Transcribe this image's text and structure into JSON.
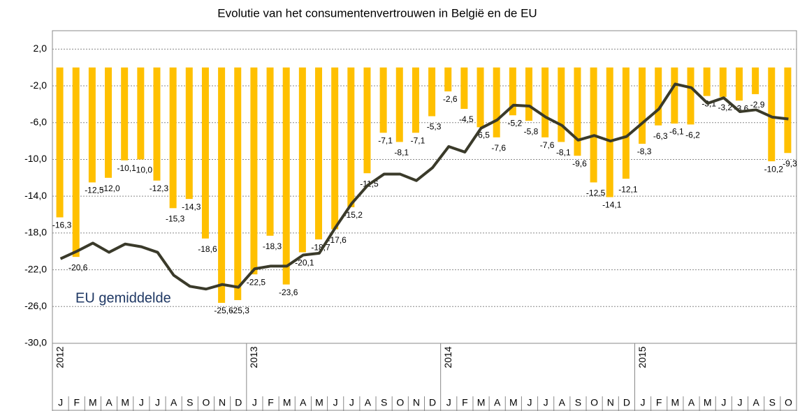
{
  "chart_data": {
    "type": "combo",
    "title": "Evolutie van het consumentenvertrouwen in België en de EU",
    "categories": [
      "J",
      "F",
      "M",
      "A",
      "M",
      "J",
      "J",
      "A",
      "S",
      "O",
      "N",
      "D",
      "J",
      "F",
      "M",
      "A",
      "M",
      "J",
      "J",
      "A",
      "S",
      "O",
      "N",
      "D",
      "J",
      "F",
      "M",
      "A",
      "M",
      "J",
      "J",
      "A",
      "S",
      "O",
      "N",
      "D",
      "J",
      "F",
      "M",
      "A",
      "M",
      "J",
      "J",
      "A",
      "S",
      "O"
    ],
    "years": [
      "2012",
      "2013",
      "2014",
      "2015"
    ],
    "ylim": [
      -30,
      4
    ],
    "yticks": [
      {
        "value": 2,
        "label": "2,0"
      },
      {
        "value": -2,
        "label": "-2,0"
      },
      {
        "value": -6,
        "label": "-6,0"
      },
      {
        "value": -10,
        "label": "-10,0"
      },
      {
        "value": -14,
        "label": "-14,0"
      },
      {
        "value": -18,
        "label": "-18,0"
      },
      {
        "value": -22,
        "label": "-22,0"
      },
      {
        "value": -26,
        "label": "-26,0"
      },
      {
        "value": -30,
        "label": "-30,0"
      }
    ],
    "grid": true,
    "series": [
      {
        "type": "bar",
        "color": "#ffc000",
        "values": [
          -16.3,
          -20.6,
          -12.5,
          -12.0,
          -10.1,
          -10.0,
          -12.3,
          -15.3,
          -14.3,
          -18.6,
          -25.6,
          -25.3,
          -22.5,
          -18.3,
          -23.6,
          -20.1,
          -18.7,
          -17.6,
          -15.2,
          -11.5,
          -7.1,
          -8.1,
          -7.1,
          -5.3,
          -2.6,
          -4.5,
          -6.5,
          -7.6,
          -5.2,
          -5.8,
          -7.6,
          -8.1,
          -9.6,
          -12.5,
          -14.1,
          -12.1,
          -8.3,
          -6.3,
          -6.1,
          -6.2,
          -3.1,
          -3.2,
          -3.6,
          -2.9,
          -10.2,
          -9.3
        ],
        "value_labels": [
          "-16,3",
          "-20,6",
          "-12,5",
          "-12,0",
          "-10,1",
          "-10,0",
          "-12,3",
          "-15,3",
          "-14,3",
          "-18,6",
          "-25,6",
          "-25,3",
          "-22,5",
          "-18,3",
          "-23,6",
          "-20,1",
          "-18,7",
          "-17,6",
          "-15,2",
          "-11,5",
          "-7,1",
          "-8,1",
          "-7,1",
          "-5,3",
          "-2,6",
          "-4,5",
          "-6,5",
          "-7,6",
          "-5,2",
          "-5,8",
          "-7,6",
          "-8,1",
          "-9,6",
          "-12,5",
          "-14,1",
          "-12,1",
          "-8,3",
          "-6,3",
          "-6,1",
          "-6,2",
          "-3,1",
          "-3,2",
          "-3,6",
          "-2,9",
          "-10,2",
          "-9,3"
        ]
      },
      {
        "type": "line",
        "name": "EU gemiddelde",
        "color": "#3a3a2a",
        "values": [
          -20.8,
          -20.0,
          -19.1,
          -20.1,
          -19.2,
          -19.5,
          -20.1,
          -22.6,
          -23.8,
          -24.1,
          -23.6,
          -23.9,
          -21.9,
          -21.6,
          -21.6,
          -20.4,
          -20.2,
          -17.4,
          -14.8,
          -12.8,
          -11.6,
          -11.6,
          -12.3,
          -10.9,
          -8.6,
          -9.2,
          -6.6,
          -5.7,
          -4.1,
          -4.2,
          -5.4,
          -6.3,
          -7.9,
          -7.4,
          -8.0,
          -7.5,
          -6.0,
          -4.5,
          -1.8,
          -2.2,
          -3.9,
          -3.3,
          -4.8,
          -4.6,
          -5.4,
          -5.6
        ]
      }
    ]
  }
}
